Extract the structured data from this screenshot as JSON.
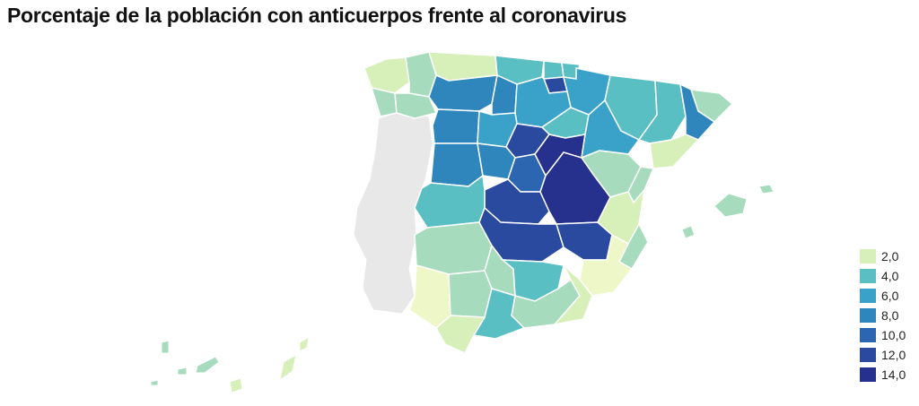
{
  "title": "Porcentaje de la población con anticuerpos frente al coronavirus",
  "legend": [
    {
      "label": "2,0",
      "color": "#d7efb9"
    },
    {
      "label": "4,0",
      "color": "#59bfc3"
    },
    {
      "label": "6,0",
      "color": "#3aa2c8"
    },
    {
      "label": "8,0",
      "color": "#2f86bd"
    },
    {
      "label": "10,0",
      "color": "#2c65b0"
    },
    {
      "label": "12,0",
      "color": "#2a4aa0"
    },
    {
      "label": "14,0",
      "color": "#25318c"
    }
  ],
  "colors": {
    "no_data": "#e8e8e8",
    "level_1": "#eef7c8",
    "level_2": "#d7efb9",
    "level_3": "#a6dbbd",
    "level_4": "#59bfc3",
    "level_5": "#3aa2c8",
    "level_6": "#2f86bd",
    "level_7": "#2c65b0",
    "level_8": "#2a4aa0",
    "level_9": "#25318c"
  }
}
